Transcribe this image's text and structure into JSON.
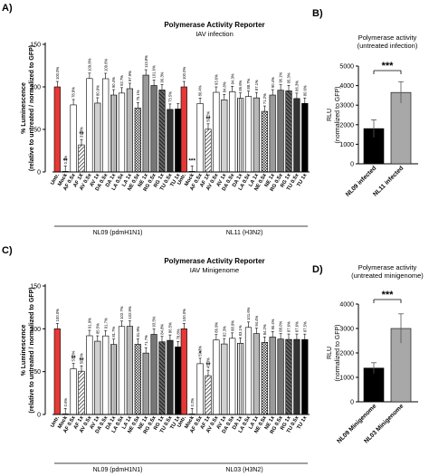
{
  "chart_data": [
    {
      "type": "bar",
      "panel": "A)",
      "title": "Polymerase Activity Reporter",
      "subtitle": "IAV infection",
      "ylabel": "% Luminescence",
      "ylabel2": "(relative to untreated / normalized to GFP)",
      "ylim": [
        0,
        150
      ],
      "yticks": [
        0,
        50,
        100,
        150
      ],
      "grid": false,
      "categories": [
        "Untr.",
        "Mock",
        "AF 0.5x",
        "AF 1X",
        "AV 0.5x",
        "AV 1x",
        "DA 0.5x",
        "DA 1x",
        "LA 0.5x",
        "LA 1x",
        "NE 0.5x",
        "NE 1x",
        "RG 0.5x",
        "RG 1x",
        "TU 0.5x",
        "TU 1x"
      ],
      "groups": [
        {
          "name": "NL09 (pdmH1N1)",
          "values": [
            100,
            0.2,
            78.8,
            31.8,
            109.8,
            80.9,
            109.6,
            90.4,
            92.7,
            97.9,
            75.1,
            113.8,
            101.6,
            96.3,
            73.5,
            74
          ],
          "labels": [
            "100.0%",
            "0.2%",
            "78.8%",
            "31.8%",
            "109.8%",
            "80.9%",
            "109.6%",
            "90.4%",
            "92.7%",
            "97.9%",
            "75.1%",
            "113.8%",
            "101.6%",
            "96.3%",
            "73.5%",
            ""
          ],
          "stars": [
            "",
            "**",
            "",
            "**",
            "",
            "",
            "",
            "",
            "",
            "",
            "",
            "",
            "",
            "",
            "",
            ""
          ]
        },
        {
          "name": "NL11 (H3N2)",
          "values": [
            100,
            0.2,
            80.4,
            50.2,
            93.6,
            84.8,
            94.3,
            86.6,
            88.7,
            87.1,
            71.2,
            90.4,
            96.1,
            95.3,
            86.3,
            80.6
          ],
          "labels": [
            "100.0%",
            "",
            "80.4%",
            "50.2%",
            "93.6%",
            "84.8%",
            "94.3%",
            "86.6%",
            "88.7%",
            "87.1%",
            "71.2%",
            "90.4%",
            "96.1%",
            "95.3%",
            "86.3%",
            "80.6%"
          ],
          "stars": [
            "",
            "***",
            "",
            "**",
            "",
            "",
            "",
            "",
            "",
            "",
            "",
            "",
            "",
            "",
            "",
            ""
          ]
        }
      ]
    },
    {
      "type": "bar",
      "panel": "B)",
      "title": "Polymerase activity",
      "subtitle": "(untreated infection)",
      "ylabel": "RLU",
      "ylabel2": "(normalized to GFP)",
      "ylim": [
        0,
        5000
      ],
      "yticks": [
        0,
        1000,
        2000,
        3000,
        4000,
        5000
      ],
      "categories": [
        "NL09 infected",
        "NL11 infected"
      ],
      "values": [
        1800,
        3650
      ],
      "errors": [
        450,
        550
      ],
      "colors": [
        "#000000",
        "#a8a8a8"
      ],
      "significance": "***"
    },
    {
      "type": "bar",
      "panel": "C)",
      "title": "Polymerase Activity Reporter",
      "subtitle": "IAV Minigenome",
      "ylabel": "% Luminescence",
      "ylabel2": "(relative to untreated / normalized to GFP)",
      "ylim": [
        0,
        150
      ],
      "yticks": [
        0,
        50,
        100,
        150
      ],
      "grid": false,
      "categories": [
        "Untr.",
        "Mock",
        "AF 0.5x",
        "AF 1x",
        "AV 0.5x",
        "AV 1x",
        "DA 0.5x",
        "DA 1x",
        "LA 0.5x",
        "LA 1x",
        "NE 0.5x",
        "NE 1x",
        "RG 0.5x",
        "RG 1x",
        "TU 0.5x",
        "TU 1x"
      ],
      "groups": [
        {
          "name": "NL09 (pdmH1N1)",
          "values": [
            100,
            0.6,
            53.3,
            50.5,
            91.9,
            85.5,
            91.7,
            81.7,
            102.7,
            102.9,
            81.9,
            71.7,
            93.5,
            84.8,
            86.5,
            78.8
          ],
          "labels": [
            "100.0%",
            "0.6%",
            "53.3%",
            "50.5%",
            "91.9%",
            "85.5%",
            "91.7%",
            "81.7%",
            "102.7%",
            "102.9%",
            "81.9%",
            "71.7%",
            "93.5%",
            "84.8%",
            "86.5%",
            "78.8%"
          ],
          "stars": [
            "",
            "",
            "**",
            "**",
            "",
            "",
            "",
            "",
            "",
            "",
            "",
            "",
            "",
            "",
            "",
            ""
          ]
        },
        {
          "name": "NL03 (H3N2)",
          "values": [
            100,
            0.2,
            59.3,
            45.3,
            86.9,
            82.3,
            88.9,
            83.1,
            101.6,
            94.4,
            84.2,
            90.4,
            88.0,
            87.6,
            87.6,
            87.5
          ],
          "labels": [
            "100.0%",
            "0.2%",
            "59.3%",
            "45.3%",
            "86.9%",
            "82.3%",
            "88.9%",
            "83.1%",
            "101.6%",
            "94.4%",
            "84.2%",
            "90.4%",
            "88.0%",
            "87.6%",
            "87.6%",
            "87.5%"
          ],
          "stars": [
            "",
            "",
            "*",
            "**",
            "",
            "",
            "",
            "",
            "",
            "",
            "",
            "",
            "",
            "",
            "",
            ""
          ]
        }
      ]
    },
    {
      "type": "bar",
      "panel": "D)",
      "title": "Polymerase activity",
      "subtitle": "(untreated minigenome)",
      "ylabel": "RLU",
      "ylabel2": "(normalized to GFP)",
      "ylim": [
        0,
        4000
      ],
      "yticks": [
        0,
        1000,
        2000,
        3000,
        4000
      ],
      "categories": [
        "NL09 Minigenome",
        "NL03 Minigenome"
      ],
      "values": [
        1380,
        3000
      ],
      "errors": [
        220,
        600
      ],
      "colors": [
        "#000000",
        "#a8a8a8"
      ],
      "significance": "***"
    }
  ],
  "style": {
    "untreated_color": "#e53935",
    "mock_color": "#ffffff",
    "dark_color": "#000000",
    "gray_color": "#a8a8a8"
  }
}
